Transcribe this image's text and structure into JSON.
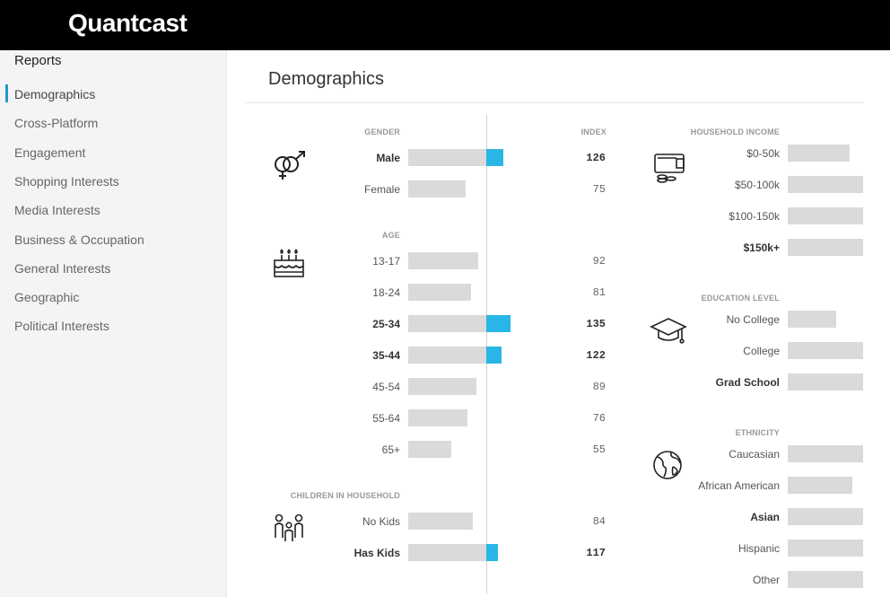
{
  "brand": {
    "logo_text": "Quantcast",
    "accent": "#1f9ac9",
    "bar_highlight": "#29b6e6",
    "bar_base": "#dadada"
  },
  "sidebar": {
    "title": "Reports",
    "items": [
      {
        "label": "Demographics",
        "active": true
      },
      {
        "label": "Cross-Platform"
      },
      {
        "label": "Engagement"
      },
      {
        "label": "Shopping Interests"
      },
      {
        "label": "Media Interests"
      },
      {
        "label": "Business & Occupation"
      },
      {
        "label": "General Interests"
      },
      {
        "label": "Geographic"
      },
      {
        "label": "Political Interests"
      }
    ]
  },
  "main": {
    "title": "Demographics",
    "index_header": "INDEX",
    "gender": {
      "heading": "GENDER",
      "icon": "gender-icon",
      "rows": [
        {
          "label": "Male",
          "index": "126",
          "bold": true,
          "share": 0.53
        },
        {
          "label": "Female",
          "index": "75",
          "bold": false,
          "share": 0.32
        }
      ]
    },
    "age": {
      "heading": "AGE",
      "icon": "birthday-cake-icon",
      "rows": [
        {
          "label": "13-17",
          "index": "92",
          "bold": false,
          "share": 0.39
        },
        {
          "label": "18-24",
          "index": "81",
          "bold": false,
          "share": 0.35
        },
        {
          "label": "25-34",
          "index": "135",
          "bold": true,
          "share": 0.57
        },
        {
          "label": "35-44",
          "index": "122",
          "bold": true,
          "share": 0.52
        },
        {
          "label": "45-54",
          "index": "89",
          "bold": false,
          "share": 0.38
        },
        {
          "label": "55-64",
          "index": "76",
          "bold": false,
          "share": 0.33
        },
        {
          "label": "65+",
          "index": "55",
          "bold": false,
          "share": 0.24
        }
      ]
    },
    "children": {
      "heading": "CHILDREN IN HOUSEHOLD",
      "icon": "family-icon",
      "rows": [
        {
          "label": "No Kids",
          "index": "84",
          "bold": false,
          "share": 0.36
        },
        {
          "label": "Has Kids",
          "index": "117",
          "bold": true,
          "share": 0.5
        }
      ]
    },
    "income": {
      "heading": "HOUSEHOLD INCOME",
      "icon": "wallet-coins-icon",
      "rows": [
        {
          "label": "$0-50k",
          "bold": false,
          "share": 0.82
        },
        {
          "label": "$50-100k",
          "bold": false,
          "share": 1.0
        },
        {
          "label": "$100-150k",
          "bold": false,
          "share": 1.0
        },
        {
          "label": "$150k+",
          "bold": true,
          "share": 1.0
        }
      ]
    },
    "education": {
      "heading": "EDUCATION LEVEL",
      "icon": "graduation-cap-icon",
      "rows": [
        {
          "label": "No College",
          "bold": false,
          "share": 0.64
        },
        {
          "label": "College",
          "bold": false,
          "share": 1.0
        },
        {
          "label": "Grad School",
          "bold": true,
          "share": 1.0
        }
      ]
    },
    "ethnicity": {
      "heading": "ETHNICITY",
      "icon": "globe-icon",
      "rows": [
        {
          "label": "Caucasian",
          "bold": false,
          "share": 1.0
        },
        {
          "label": "African American",
          "bold": false,
          "share": 0.86
        },
        {
          "label": "Asian",
          "bold": true,
          "share": 1.0
        },
        {
          "label": "Hispanic",
          "bold": false,
          "share": 1.0
        },
        {
          "label": "Other",
          "bold": false,
          "share": 1.0
        }
      ]
    }
  }
}
